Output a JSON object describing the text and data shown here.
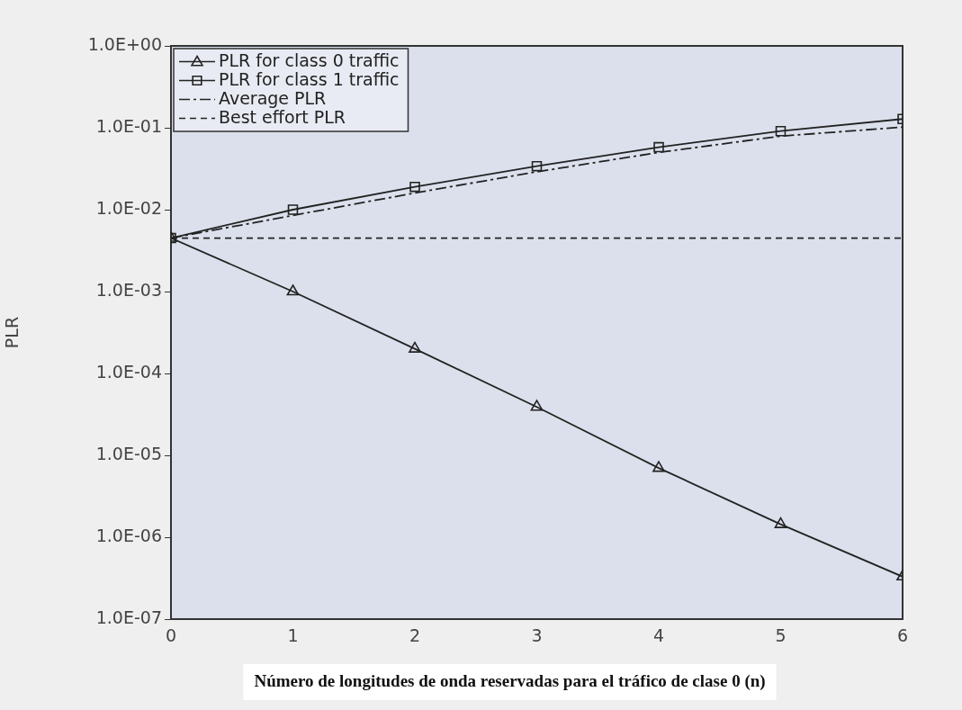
{
  "chart_data": {
    "type": "line",
    "xlabel": "Número de longitudes de onda reservadas para el tráfico de clase 0 (n)",
    "ylabel": "PLR",
    "x": [
      0,
      1,
      2,
      3,
      4,
      5,
      6
    ],
    "xlim": [
      0,
      6
    ],
    "xticks": [
      0,
      1,
      2,
      3,
      4,
      5,
      6
    ],
    "log": "y",
    "ylim": [
      1e-07,
      1
    ],
    "yticks": [
      {
        "value": 1,
        "label": "1.0E+00"
      },
      {
        "value": 0.1,
        "label": "1.0E-01"
      },
      {
        "value": 0.01,
        "label": "1.0E-02"
      },
      {
        "value": 0.001,
        "label": "1.0E-03"
      },
      {
        "value": 0.0001,
        "label": "1.0E-04"
      },
      {
        "value": 1e-05,
        "label": "1.0E-05"
      },
      {
        "value": 1e-06,
        "label": "1.0E-06"
      },
      {
        "value": 1e-07,
        "label": "1.0E-07"
      }
    ],
    "grid": false,
    "legend": "top left",
    "series": [
      {
        "name": "PLR for class 0 traffic",
        "color": "#222222",
        "marker": "triangle",
        "line_style": "solid",
        "values": [
          0.0045,
          0.001,
          0.0002,
          3.9e-05,
          7e-06,
          1.44e-06,
          3.3e-07
        ]
      },
      {
        "name": "PLR for class 1 traffic",
        "color": "#222222",
        "marker": "square",
        "line_style": "solid",
        "values": [
          0.0045,
          0.01,
          0.019,
          0.034,
          0.058,
          0.091,
          0.128
        ]
      },
      {
        "name": "Average PLR",
        "color": "#222222",
        "marker": "none",
        "line_style": "dashdot",
        "values": [
          0.0045,
          0.0085,
          0.016,
          0.029,
          0.05,
          0.079,
          0.102
        ]
      },
      {
        "name": "Best effort PLR",
        "color": "#222222",
        "marker": "none",
        "line_style": "dashed",
        "values": [
          0.0045,
          0.0045,
          0.0045,
          0.0045,
          0.0045,
          0.0045,
          0.0045
        ]
      }
    ]
  }
}
